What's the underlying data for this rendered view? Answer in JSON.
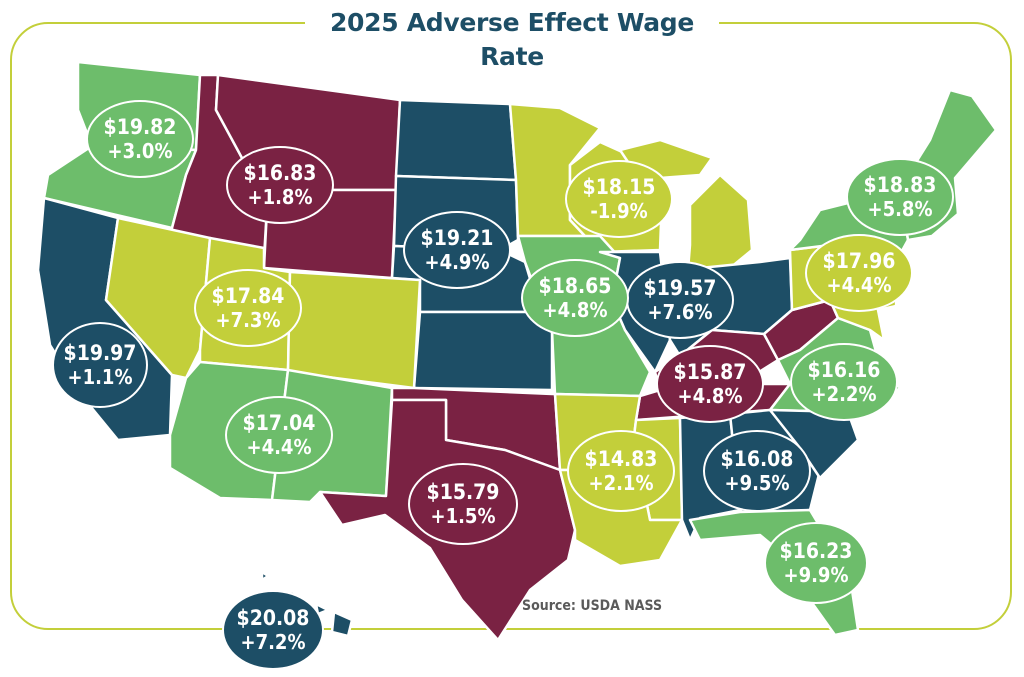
{
  "title": "2025 Adverse Effect Wage Rate",
  "source": "Source: USDA NASS",
  "colors": {
    "maroon": "#7a2243",
    "teal": "#1d4e66",
    "green": "#6dbd6b",
    "lime": "#c3cf3a",
    "frame": "#c3cf3a"
  },
  "regions": [
    {
      "id": "northwest",
      "wage": "$19.82",
      "change": "+3.0%",
      "color": "green"
    },
    {
      "id": "mountain-i",
      "wage": "$16.83",
      "change": "+1.8%",
      "color": "maroon"
    },
    {
      "id": "northern-plains",
      "wage": "$19.21",
      "change": "+4.9%",
      "color": "teal"
    },
    {
      "id": "lake",
      "wage": "$18.15",
      "change": "-1.9%",
      "color": "lime"
    },
    {
      "id": "northeast-i",
      "wage": "$18.83",
      "change": "+5.8%",
      "color": "green"
    },
    {
      "id": "northeast-ii",
      "wage": "$17.96",
      "change": "+4.4%",
      "color": "lime"
    },
    {
      "id": "mountain-iii",
      "wage": "$17.84",
      "change": "+7.3%",
      "color": "lime"
    },
    {
      "id": "cornbelt-i",
      "wage": "$19.57",
      "change": "+7.6%",
      "color": "teal"
    },
    {
      "id": "cornbelt-ii",
      "wage": "$18.65",
      "change": "+4.8%",
      "color": "green"
    },
    {
      "id": "california",
      "wage": "$19.97",
      "change": "+1.1%",
      "color": "teal"
    },
    {
      "id": "appalachian-ii",
      "wage": "$15.87",
      "change": "+4.8%",
      "color": "maroon"
    },
    {
      "id": "appalachian-i",
      "wage": "$16.16",
      "change": "+2.2%",
      "color": "green"
    },
    {
      "id": "mountain-ii",
      "wage": "$17.04",
      "change": "+4.4%",
      "color": "green"
    },
    {
      "id": "delta",
      "wage": "$14.83",
      "change": "+2.1%",
      "color": "lime"
    },
    {
      "id": "southeast",
      "wage": "$16.08",
      "change": "+9.5%",
      "color": "teal"
    },
    {
      "id": "southern-plains",
      "wage": "$15.79",
      "change": "+1.5%",
      "color": "maroon"
    },
    {
      "id": "florida",
      "wage": "$16.23",
      "change": "+9.9%",
      "color": "green"
    },
    {
      "id": "hawaii",
      "wage": "$20.08",
      "change": "+7.2%",
      "color": "teal"
    }
  ]
}
